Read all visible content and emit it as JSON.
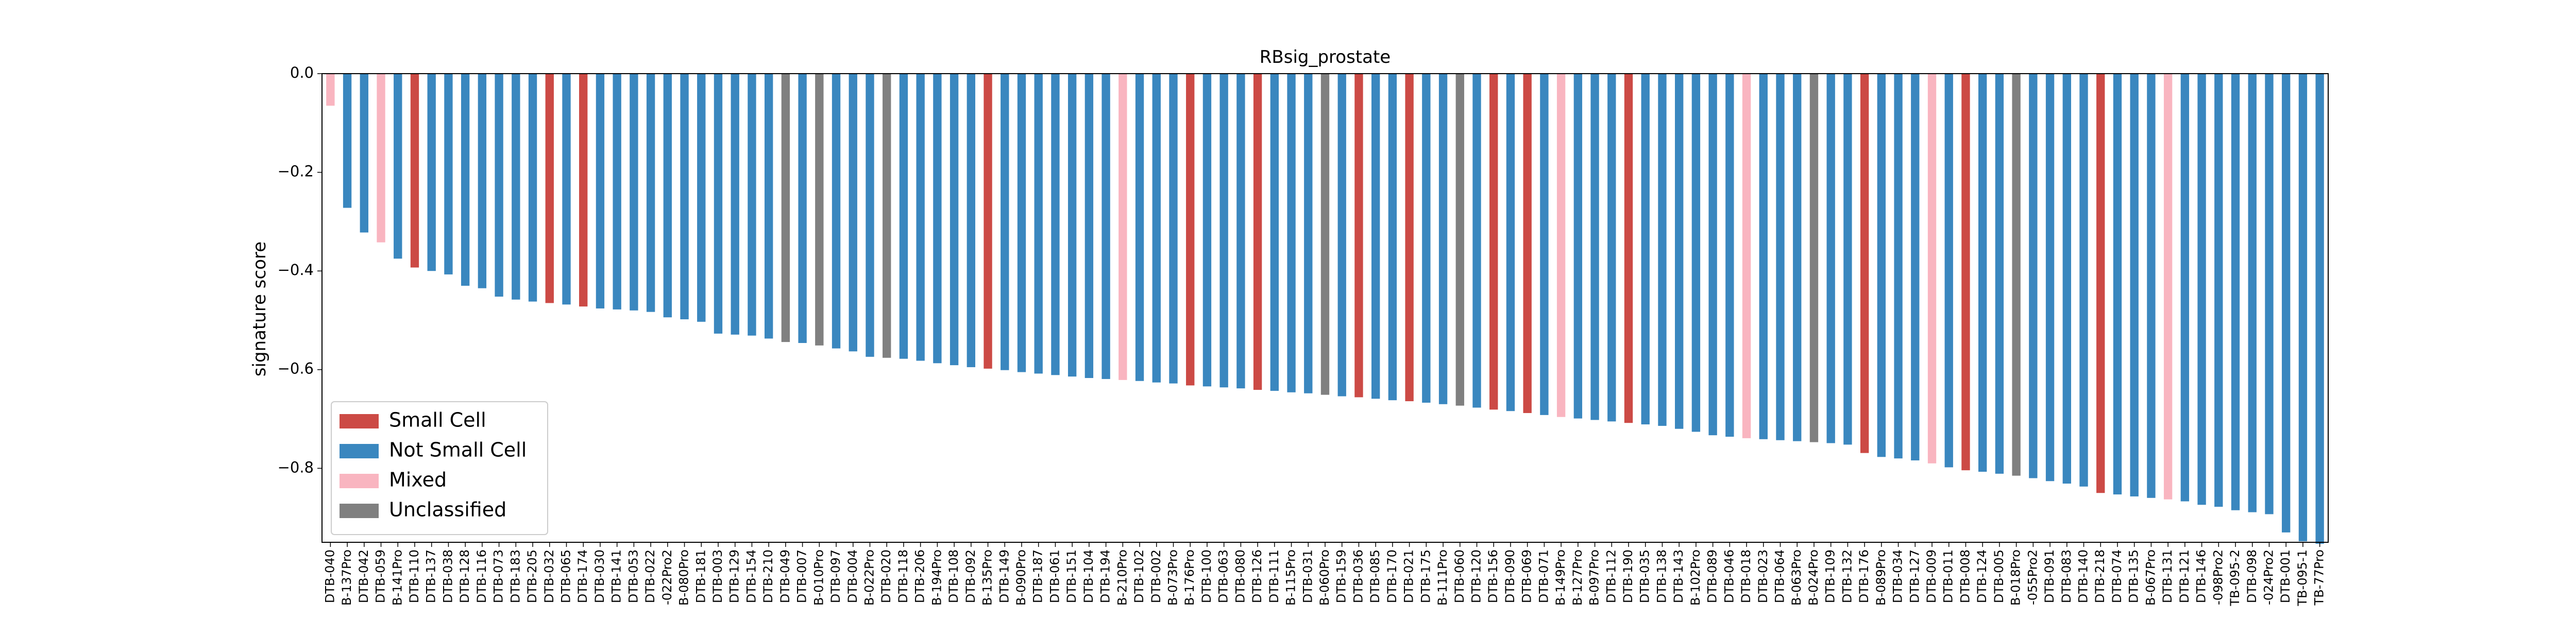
{
  "chart_data": {
    "type": "bar",
    "title": "RBsig_prostate",
    "xlabel": "",
    "ylabel": "signature score",
    "ylim": [
      -0.95,
      0.0
    ],
    "yticks": [
      0.0,
      -0.2,
      -0.4,
      -0.6,
      -0.8
    ],
    "ytick_labels": [
      "0.0",
      "−0.2",
      "−0.4",
      "−0.6",
      "−0.8"
    ],
    "grid": false,
    "legend_position": "bottom-left",
    "legend": [
      {
        "name": "Small Cell",
        "color": "#cc4a45"
      },
      {
        "name": "Not Small Cell",
        "color": "#3a87bf"
      },
      {
        "name": "Mixed",
        "color": "#f9b5c0"
      },
      {
        "name": "Unclassified",
        "color": "#808080"
      }
    ],
    "categories": [
      "DTB-040",
      "B-137Pro",
      "DTB-042",
      "DTB-059",
      "B-141Pro",
      "DTB-110",
      "DTB-137",
      "DTB-038",
      "DTB-128",
      "DTB-116",
      "DTB-073",
      "DTB-183",
      "DTB-205",
      "DTB-032",
      "DTB-065",
      "DTB-174",
      "DTB-030",
      "DTB-141",
      "DTB-053",
      "DTB-022",
      "-022Pro2",
      "B-080Pro",
      "DTB-181",
      "DTB-003",
      "DTB-129",
      "DTB-154",
      "DTB-210",
      "DTB-049",
      "DTB-007",
      "B-010Pro",
      "DTB-097",
      "DTB-004",
      "B-022Pro",
      "DTB-020",
      "DTB-118",
      "DTB-206",
      "B-194Pro",
      "DTB-108",
      "DTB-092",
      "B-135Pro",
      "DTB-149",
      "B-090Pro",
      "DTB-187",
      "DTB-061",
      "DTB-151",
      "DTB-104",
      "DTB-194",
      "B-210Pro",
      "DTB-102",
      "DTB-002",
      "B-073Pro",
      "B-176Pro",
      "DTB-100",
      "DTB-063",
      "DTB-080",
      "DTB-126",
      "DTB-111",
      "B-115Pro",
      "DTB-031",
      "B-060Pro",
      "DTB-159",
      "DTB-036",
      "DTB-085",
      "DTB-170",
      "DTB-021",
      "DTB-175",
      "B-111Pro",
      "DTB-060",
      "DTB-120",
      "DTB-156",
      "DTB-090",
      "DTB-069",
      "DTB-071",
      "B-149Pro",
      "B-127Pro",
      "B-097Pro",
      "DTB-112",
      "DTB-190",
      "DTB-035",
      "DTB-138",
      "DTB-143",
      "B-102Pro",
      "DTB-089",
      "DTB-046",
      "DTB-018",
      "DTB-023",
      "DTB-064",
      "B-063Pro",
      "B-024Pro",
      "DTB-109",
      "DTB-132",
      "DTB-176",
      "B-089Pro",
      "DTB-034",
      "DTB-127",
      "DTB-009",
      "DTB-011",
      "DTB-008",
      "DTB-124",
      "DTB-005",
      "B-018Pro",
      "-055Pro2",
      "DTB-091",
      "DTB-083",
      "DTB-140",
      "DTB-218",
      "DTB-074",
      "DTB-135",
      "B-067Pro",
      "DTB-131",
      "DTB-121",
      "DTB-146",
      "-098Pro2",
      "TB-095-2",
      "DTB-098",
      "-024Pro2",
      "DTB-001",
      "TB-095-1",
      "TB-77Pro"
    ],
    "classes": [
      "Mixed",
      "Not Small Cell",
      "Not Small Cell",
      "Mixed",
      "Not Small Cell",
      "Small Cell",
      "Not Small Cell",
      "Not Small Cell",
      "Not Small Cell",
      "Not Small Cell",
      "Not Small Cell",
      "Not Small Cell",
      "Not Small Cell",
      "Small Cell",
      "Not Small Cell",
      "Small Cell",
      "Not Small Cell",
      "Not Small Cell",
      "Not Small Cell",
      "Not Small Cell",
      "Not Small Cell",
      "Not Small Cell",
      "Not Small Cell",
      "Not Small Cell",
      "Not Small Cell",
      "Not Small Cell",
      "Not Small Cell",
      "Unclassified",
      "Not Small Cell",
      "Unclassified",
      "Not Small Cell",
      "Not Small Cell",
      "Not Small Cell",
      "Unclassified",
      "Not Small Cell",
      "Not Small Cell",
      "Not Small Cell",
      "Not Small Cell",
      "Not Small Cell",
      "Small Cell",
      "Not Small Cell",
      "Not Small Cell",
      "Not Small Cell",
      "Not Small Cell",
      "Not Small Cell",
      "Not Small Cell",
      "Not Small Cell",
      "Mixed",
      "Not Small Cell",
      "Not Small Cell",
      "Not Small Cell",
      "Small Cell",
      "Not Small Cell",
      "Not Small Cell",
      "Not Small Cell",
      "Small Cell",
      "Not Small Cell",
      "Not Small Cell",
      "Not Small Cell",
      "Unclassified",
      "Not Small Cell",
      "Small Cell",
      "Not Small Cell",
      "Not Small Cell",
      "Small Cell",
      "Not Small Cell",
      "Not Small Cell",
      "Unclassified",
      "Not Small Cell",
      "Small Cell",
      "Not Small Cell",
      "Small Cell",
      "Not Small Cell",
      "Mixed",
      "Not Small Cell",
      "Not Small Cell",
      "Not Small Cell",
      "Small Cell",
      "Not Small Cell",
      "Not Small Cell",
      "Not Small Cell",
      "Not Small Cell",
      "Not Small Cell",
      "Not Small Cell",
      "Mixed",
      "Not Small Cell",
      "Not Small Cell",
      "Not Small Cell",
      "Unclassified",
      "Not Small Cell",
      "Not Small Cell",
      "Small Cell",
      "Not Small Cell",
      "Not Small Cell",
      "Not Small Cell",
      "Mixed",
      "Not Small Cell",
      "Small Cell",
      "Not Small Cell",
      "Not Small Cell",
      "Unclassified",
      "Not Small Cell",
      "Not Small Cell",
      "Not Small Cell",
      "Not Small Cell",
      "Small Cell",
      "Not Small Cell",
      "Not Small Cell",
      "Not Small Cell",
      "Mixed",
      "Not Small Cell",
      "Not Small Cell",
      "Not Small Cell",
      "Not Small Cell",
      "Not Small Cell",
      "Not Small Cell",
      "Not Small Cell",
      "Not Small Cell",
      "Not Small Cell"
    ],
    "values": [
      -0.065,
      -0.272,
      -0.322,
      -0.342,
      -0.375,
      -0.393,
      -0.4,
      -0.407,
      -0.43,
      -0.435,
      -0.452,
      -0.458,
      -0.462,
      -0.465,
      -0.468,
      -0.472,
      -0.476,
      -0.478,
      -0.48,
      -0.483,
      -0.494,
      -0.498,
      -0.503,
      -0.527,
      -0.529,
      -0.531,
      -0.537,
      -0.544,
      -0.546,
      -0.551,
      -0.557,
      -0.563,
      -0.574,
      -0.576,
      -0.578,
      -0.582,
      -0.587,
      -0.591,
      -0.595,
      -0.598,
      -0.601,
      -0.605,
      -0.608,
      -0.611,
      -0.614,
      -0.617,
      -0.619,
      -0.621,
      -0.623,
      -0.626,
      -0.628,
      -0.632,
      -0.634,
      -0.636,
      -0.638,
      -0.641,
      -0.643,
      -0.646,
      -0.648,
      -0.651,
      -0.654,
      -0.656,
      -0.659,
      -0.662,
      -0.664,
      -0.667,
      -0.67,
      -0.673,
      -0.677,
      -0.681,
      -0.684,
      -0.688,
      -0.692,
      -0.696,
      -0.699,
      -0.702,
      -0.705,
      -0.708,
      -0.711,
      -0.714,
      -0.72,
      -0.726,
      -0.733,
      -0.736,
      -0.739,
      -0.741,
      -0.743,
      -0.745,
      -0.747,
      -0.749,
      -0.752,
      -0.769,
      -0.777,
      -0.78,
      -0.784,
      -0.79,
      -0.798,
      -0.804,
      -0.807,
      -0.811,
      -0.815,
      -0.82,
      -0.826,
      -0.831,
      -0.837,
      -0.85,
      -0.853,
      -0.857,
      -0.86,
      -0.863,
      -0.867,
      -0.874,
      -0.878,
      -0.885,
      -0.889,
      -0.893,
      -0.93,
      -0.948,
      -0.953
    ]
  }
}
